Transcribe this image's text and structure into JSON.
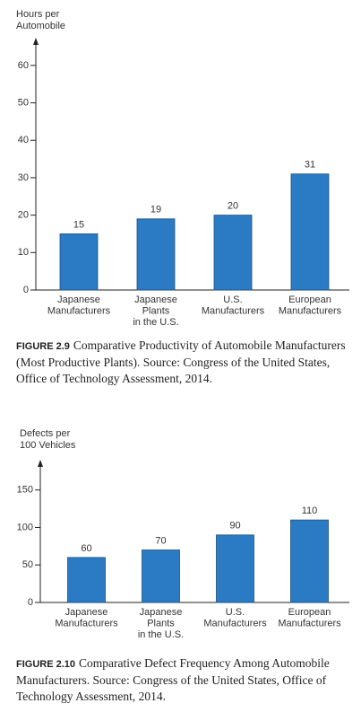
{
  "charts": [
    {
      "chart_data": {
        "type": "bar",
        "y_label": [
          "Hours per",
          "Automobile"
        ],
        "categories": [
          [
            "Japanese",
            "Manufacturers"
          ],
          [
            "Japanese",
            "Plants",
            "in the U.S."
          ],
          [
            "U.S.",
            "Manufacturers"
          ],
          [
            "European",
            "Manufacturers"
          ]
        ],
        "values": [
          15,
          19,
          20,
          31
        ],
        "color": "#2a7bc4",
        "ylim": [
          0,
          65
        ],
        "yticks": [
          0,
          10,
          20,
          30,
          40,
          50,
          60
        ]
      },
      "caption": {
        "label": "FIGURE 2.9",
        "text": "Comparative Productivity of Automobile Manufacturers (Most Productive Plants). Source: Congress of the United States, Office of Technology Assessment, 2014."
      }
    },
    {
      "chart_data": {
        "type": "bar",
        "y_label": [
          "Defects per",
          "100 Vehicles"
        ],
        "categories": [
          [
            "Japanese",
            "Manufacturers"
          ],
          [
            "Japanese",
            "Plants",
            "in the U.S."
          ],
          [
            "U.S.",
            "Manufacturers"
          ],
          [
            "European",
            "Manufacturers"
          ]
        ],
        "values": [
          60,
          70,
          90,
          110
        ],
        "color": "#2a7bc4",
        "ylim": [
          0,
          170
        ],
        "yticks": [
          0,
          50,
          100,
          150
        ]
      },
      "caption": {
        "label": "FIGURE 2.10",
        "text": "Comparative Defect Frequency Among Automobile Manufacturers. Source: Congress of the United States, Office of Technology Assessment, 2014."
      }
    }
  ]
}
